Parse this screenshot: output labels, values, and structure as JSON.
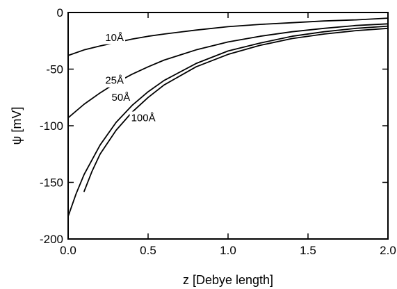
{
  "chart_data": {
    "type": "line",
    "xlabel": "z [Debye length]",
    "ylabel": "ψ [mV]",
    "xlim": [
      0,
      2
    ],
    "ylim": [
      -200,
      0
    ],
    "grid": false,
    "xticks": [
      0,
      0.5,
      1,
      1.5,
      2
    ],
    "xtick_labels": [
      "0.0",
      "0.5",
      "1.0",
      "1.5",
      "2.0"
    ],
    "yticks": [
      0,
      -50,
      -100,
      -150,
      -200
    ],
    "ytick_labels": [
      "0",
      "-50",
      "-100",
      "-150",
      "-200"
    ],
    "series": [
      {
        "name": "10Å",
        "x": [
          0,
          0.1,
          0.2,
          0.3,
          0.4,
          0.5,
          0.6,
          0.8,
          1.0,
          1.2,
          1.4,
          1.6,
          1.8,
          2.0
        ],
        "y": [
          -38,
          -33,
          -29.5,
          -26.5,
          -23.5,
          -21,
          -19,
          -15.5,
          -12.5,
          -10.5,
          -9,
          -7.5,
          -6.5,
          -5
        ]
      },
      {
        "name": "25Å",
        "x": [
          0,
          0.1,
          0.2,
          0.3,
          0.4,
          0.5,
          0.6,
          0.8,
          1.0,
          1.2,
          1.4,
          1.6,
          1.8,
          2.0
        ],
        "y": [
          -93,
          -81,
          -71,
          -62,
          -54.5,
          -48,
          -42,
          -33,
          -26,
          -21,
          -17,
          -14,
          -11.5,
          -10
        ]
      },
      {
        "name": "50Å",
        "x": [
          0,
          0.05,
          0.1,
          0.2,
          0.3,
          0.4,
          0.5,
          0.6,
          0.8,
          1.0,
          1.2,
          1.4,
          1.6,
          1.8,
          2.0
        ],
        "y": [
          -180,
          -160,
          -143,
          -117,
          -97,
          -82,
          -70,
          -60,
          -45,
          -34,
          -27,
          -21,
          -17,
          -14,
          -12
        ]
      },
      {
        "name": "100Å",
        "x": [
          0.1,
          0.15,
          0.2,
          0.3,
          0.4,
          0.5,
          0.6,
          0.8,
          1.0,
          1.2,
          1.4,
          1.6,
          1.8,
          2.0
        ],
        "y": [
          -158,
          -140,
          -125,
          -104,
          -88,
          -75,
          -64,
          -48,
          -37,
          -29,
          -23,
          -19,
          -16,
          -14
        ]
      }
    ],
    "annotations": [
      {
        "text": "10Å",
        "series": "10Å",
        "x": 0.29,
        "y": -25
      },
      {
        "text": "25Å",
        "series": "25Å",
        "x": 0.29,
        "y": -63
      },
      {
        "text": "50Å",
        "series": "50Å",
        "x": 0.33,
        "y": -78
      },
      {
        "text": "100Å",
        "series": "100Å",
        "x": 0.47,
        "y": -96
      }
    ]
  }
}
